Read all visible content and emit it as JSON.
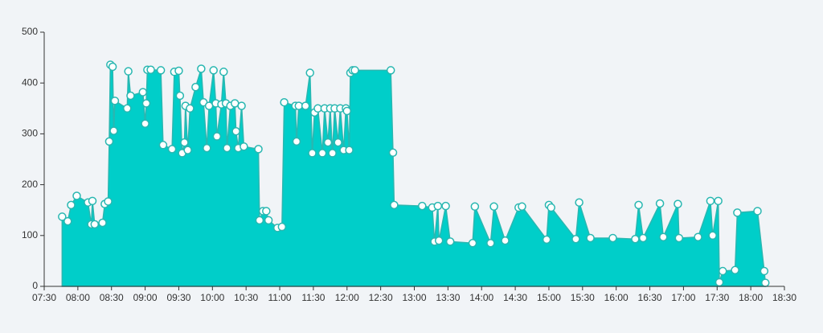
{
  "chart_data": {
    "type": "area",
    "color": "#00cec9",
    "line_color": "#29b7b1",
    "x": [
      "07:46",
      "07:51",
      "07:54",
      "07:59",
      "08:09",
      "08:12",
      "08:13",
      "08:15",
      "08:22",
      "08:24",
      "08:27",
      "08:28",
      "08:29",
      "08:31",
      "08:32",
      "08:33",
      "08:44",
      "08:45",
      "08:47",
      "08:58",
      "09:00",
      "09:01",
      "09:02",
      "09:05",
      "09:14",
      "09:16",
      "09:24",
      "09:26",
      "09:30",
      "09:31",
      "09:33",
      "09:35",
      "09:36",
      "09:38",
      "09:40",
      "09:45",
      "09:50",
      "09:52",
      "09:55",
      "09:57",
      "10:01",
      "10:03",
      "10:04",
      "10:08",
      "10:10",
      "10:12",
      "10:13",
      "10:16",
      "10:20",
      "10:21",
      "10:23",
      "10:26",
      "10:28",
      "10:41",
      "10:42",
      "10:45",
      "10:48",
      "10:50",
      "10:58",
      "11:02",
      "11:04",
      "11:14",
      "11:15",
      "11:17",
      "11:23",
      "11:27",
      "11:29",
      "11:31",
      "11:34",
      "11:38",
      "11:40",
      "11:43",
      "11:45",
      "11:47",
      "11:49",
      "11:52",
      "11:54",
      "11:57",
      "11:59",
      "12:00",
      "12:02",
      "12:03",
      "12:05",
      "12:07",
      "12:39",
      "12:41",
      "12:42",
      "13:07",
      "13:16",
      "13:18",
      "13:21",
      "13:22",
      "13:28",
      "13:32",
      "13:52",
      "13:54",
      "14:08",
      "14:11",
      "14:21",
      "14:33",
      "14:36",
      "14:58",
      "15:00",
      "15:02",
      "15:24",
      "15:27",
      "15:37",
      "15:57",
      "16:17",
      "16:20",
      "16:24",
      "16:39",
      "16:42",
      "16:55",
      "16:56",
      "17:13",
      "17:24",
      "17:26",
      "17:31",
      "17:32",
      "17:35",
      "17:46",
      "17:48",
      "18:06",
      "18:12",
      "18:13"
    ],
    "values": [
      137,
      128,
      160,
      178,
      165,
      122,
      168,
      122,
      125,
      162,
      167,
      285,
      436,
      432,
      306,
      365,
      350,
      423,
      375,
      382,
      320,
      360,
      426,
      426,
      425,
      278,
      270,
      422,
      424,
      375,
      262,
      283,
      355,
      268,
      350,
      392,
      428,
      362,
      272,
      355,
      425,
      360,
      295,
      358,
      422,
      360,
      272,
      355,
      360,
      305,
      272,
      355,
      275,
      270,
      130,
      148,
      148,
      130,
      115,
      117,
      362,
      355,
      285,
      355,
      355,
      420,
      262,
      342,
      350,
      262,
      350,
      283,
      350,
      262,
      350,
      283,
      350,
      268,
      350,
      345,
      268,
      420,
      425,
      425,
      425,
      263,
      160,
      158,
      155,
      88,
      158,
      90,
      158,
      88,
      85,
      157,
      85,
      157,
      90,
      155,
      157,
      92,
      160,
      155,
      93,
      165,
      95,
      95,
      93,
      160,
      95,
      163,
      97,
      162,
      95,
      97,
      168,
      100,
      168,
      8,
      30,
      32,
      145,
      148,
      30,
      7
    ],
    "xlim": [
      "07:30",
      "18:30"
    ],
    "xticks": [
      "07:30",
      "08:00",
      "08:30",
      "09:00",
      "09:30",
      "10:00",
      "10:30",
      "11:00",
      "11:30",
      "12:00",
      "12:30",
      "13:00",
      "13:30",
      "14:00",
      "14:30",
      "15:00",
      "15:30",
      "16:00",
      "16:30",
      "17:00",
      "17:30",
      "18:00",
      "18:30"
    ],
    "ylim": [
      0,
      500
    ],
    "yticks": [
      0,
      100,
      200,
      300,
      400,
      500
    ]
  }
}
